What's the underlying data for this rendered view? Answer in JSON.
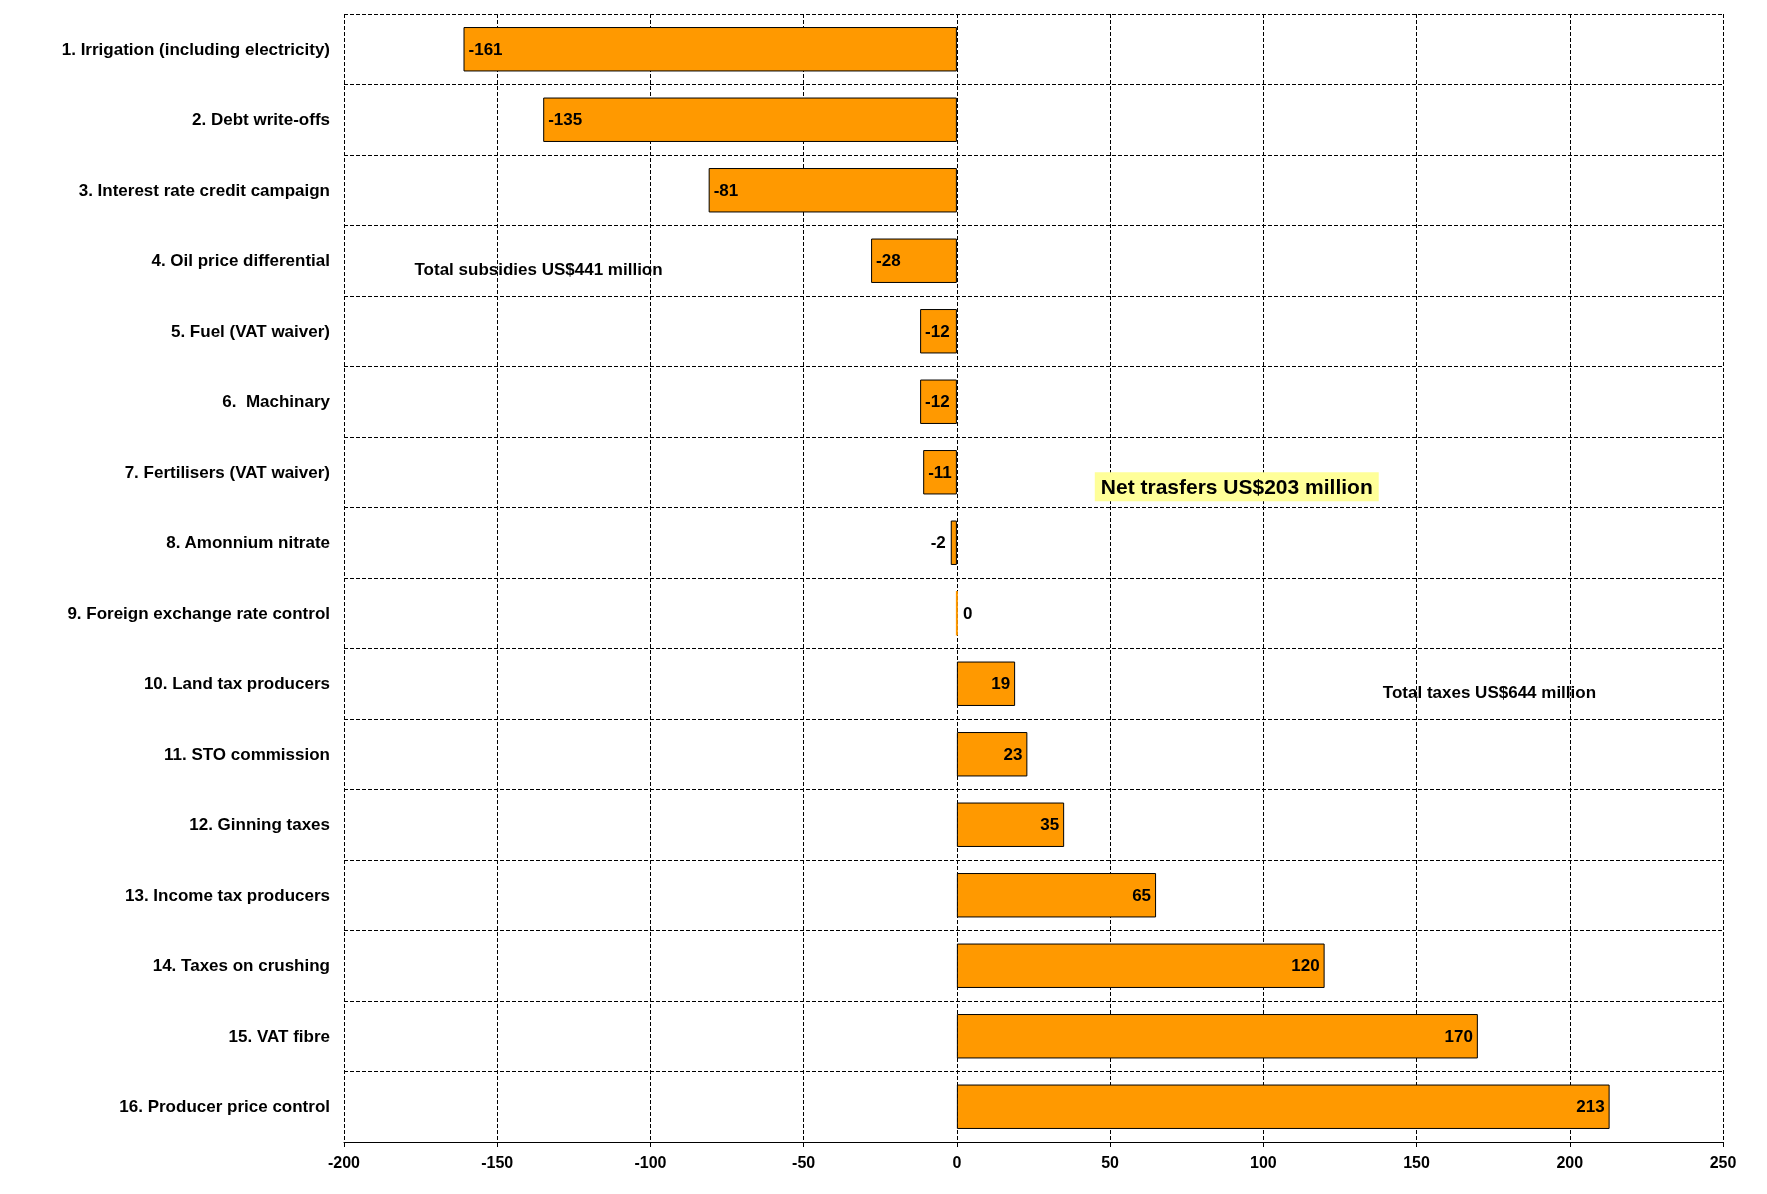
{
  "chart_data": {
    "type": "bar",
    "orientation": "horizontal",
    "categories": [
      "1. Irrigation (including electricity)",
      "2. Debt write-offs",
      "3. Interest rate credit campaign",
      "4. Oil price differential",
      "5. Fuel (VAT waiver)",
      "6.  Machinary",
      "7. Fertilisers (VAT waiver)",
      "8. Amonnium nitrate",
      "9. Foreign exchange rate control",
      "10. Land tax producers",
      "11. STO commission",
      "12. Ginning taxes",
      "13. Income tax producers",
      "14. Taxes on crushing",
      "15. VAT fibre",
      "16. Producer price control"
    ],
    "values": [
      -161,
      -135,
      -81,
      -28,
      -12,
      -12,
      -11,
      -2,
      0,
      19,
      23,
      35,
      65,
      120,
      170,
      213
    ],
    "color": "#ff9900",
    "xlim": [
      -200,
      250
    ],
    "xticks": [
      -200,
      -150,
      -100,
      -50,
      0,
      50,
      100,
      150,
      200,
      250
    ],
    "grid": true,
    "data_labels": true,
    "annotations": [
      "Total subsidies US$441 million",
      "Net trasfers US$203 million",
      "Total taxes US$644 million"
    ]
  }
}
